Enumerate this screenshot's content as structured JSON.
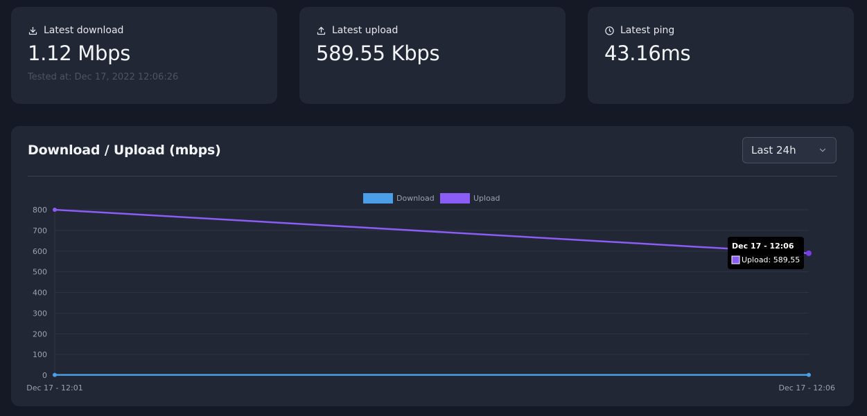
{
  "stats": [
    {
      "title": "Latest download",
      "value": "1.12 Mbps",
      "sub": "Tested at: Dec 17, 2022 12:06:26",
      "icon": "download-icon"
    },
    {
      "title": "Latest upload",
      "value": "589.55 Kbps",
      "sub": "",
      "icon": "upload-icon"
    },
    {
      "title": "Latest ping",
      "value": "43.16ms",
      "sub": "",
      "icon": "clock-icon"
    }
  ],
  "chart_card": {
    "title": "Download / Upload (mbps)",
    "range_select": "Last 24h"
  },
  "tooltip": {
    "title": "Dec 17 - 12:06",
    "body": "Upload: 589,55"
  },
  "chart_data": {
    "type": "line",
    "x": [
      "Dec 17 - 12:01",
      "Dec 17 - 12:06"
    ],
    "series": [
      {
        "name": "Download",
        "values": [
          1.12,
          1.12
        ],
        "color": "#4a9fe6"
      },
      {
        "name": "Upload",
        "values": [
          800,
          589.55
        ],
        "color": "#8b5cf6"
      }
    ],
    "ylim": [
      0,
      800
    ],
    "yticks": [
      0,
      100,
      200,
      300,
      400,
      500,
      600,
      700,
      800
    ],
    "legend": "top-center",
    "grid": true
  }
}
